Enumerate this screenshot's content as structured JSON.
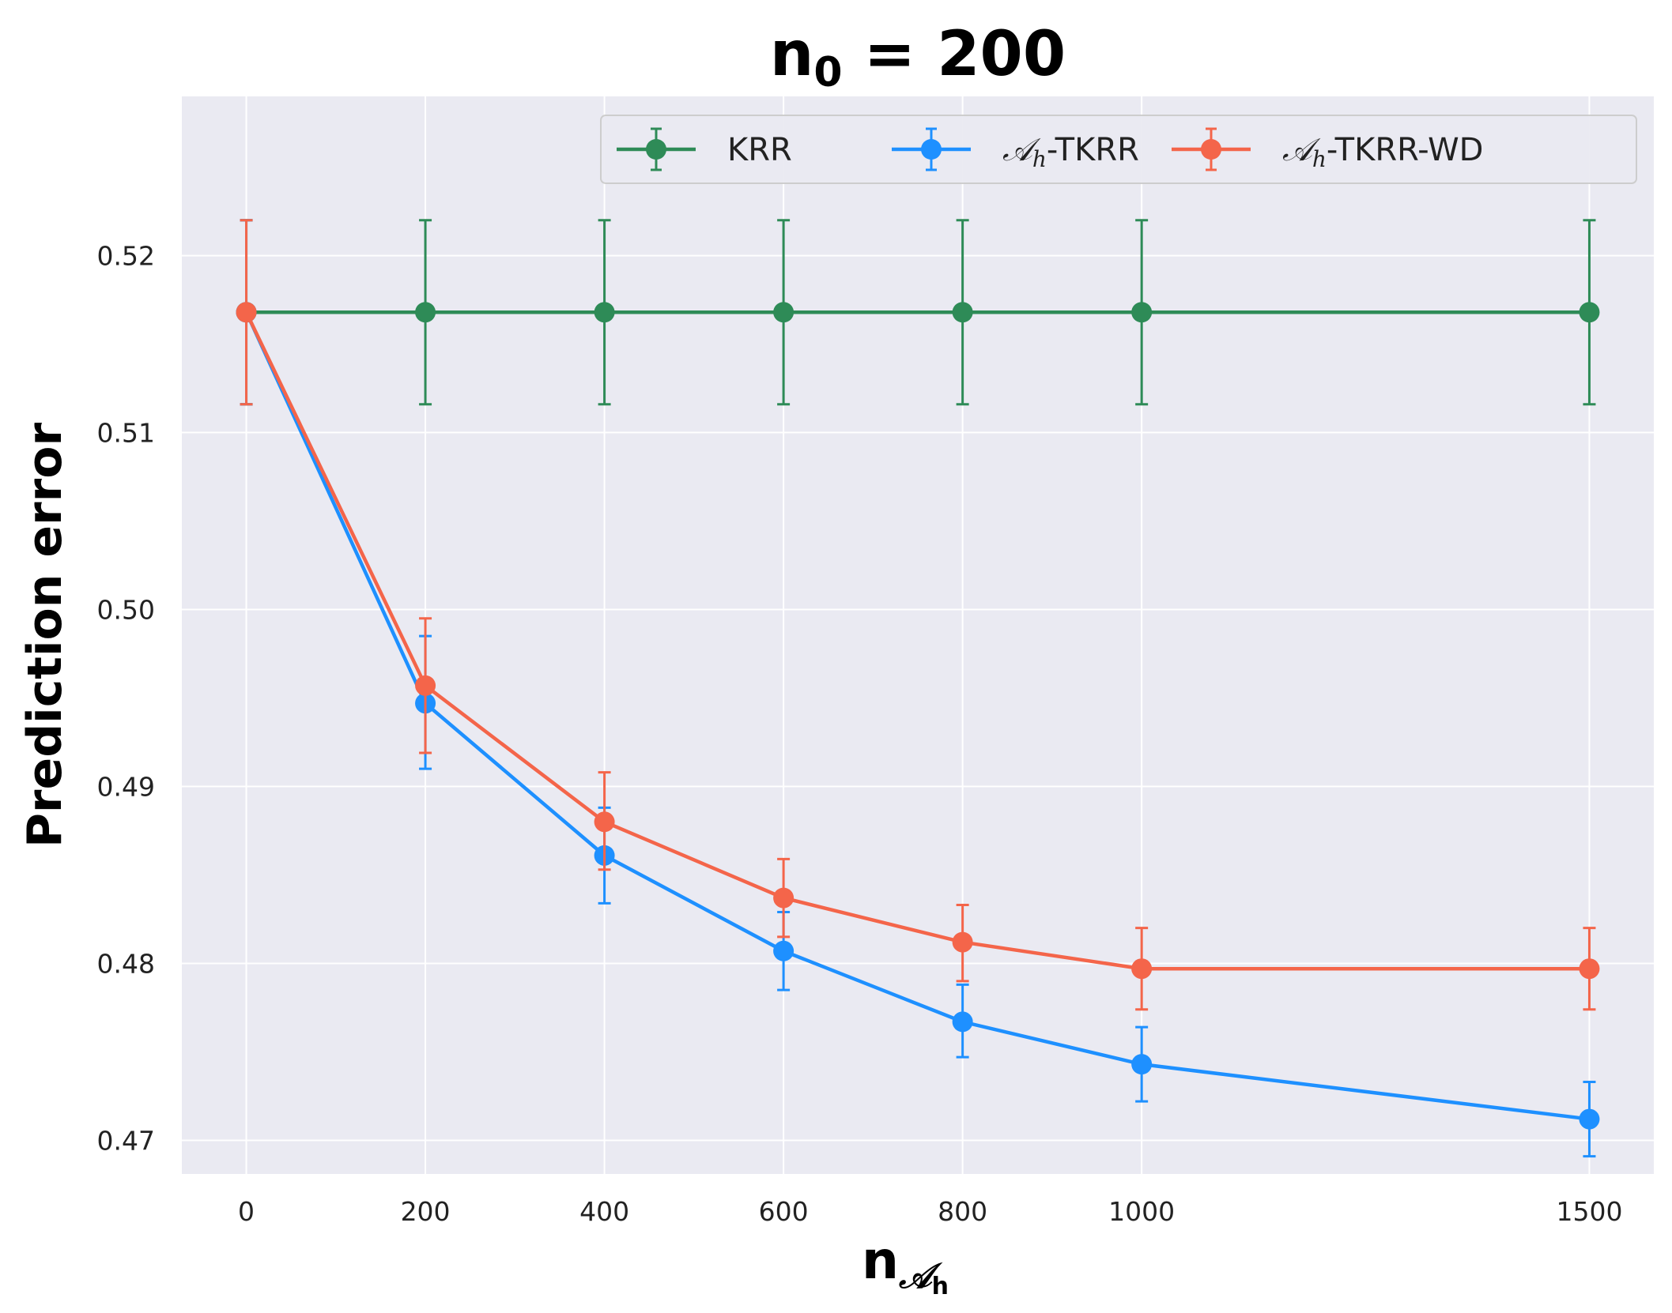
{
  "chart_data": {
    "type": "line",
    "title": {
      "main": "n",
      "sub": "0",
      "rest": " = 200"
    },
    "xlabel": {
      "main": "n",
      "sub_script": "𝒜",
      "sub_sub": "h"
    },
    "ylabel": "Prediction error",
    "x": [
      0,
      200,
      400,
      600,
      800,
      1000,
      1500
    ],
    "xticks": [
      "0",
      "200",
      "400",
      "600",
      "800",
      "1000",
      "1500"
    ],
    "xlim": [
      -72,
      1572
    ],
    "ylim": [
      0.4681,
      0.529
    ],
    "yticks": [
      0.47,
      0.48,
      0.49,
      0.5,
      0.51,
      0.52
    ],
    "ytick_labels": [
      "0.47",
      "0.48",
      "0.49",
      "0.50",
      "0.51",
      "0.52"
    ],
    "grid": true,
    "legend_position": "top-right",
    "series": [
      {
        "name": "KRR",
        "legend": {
          "prefix": "",
          "italic": "",
          "sub": "",
          "suffix": "KRR"
        },
        "color": "#2e8b57",
        "values": [
          0.5168,
          0.5168,
          0.5168,
          0.5168,
          0.5168,
          0.5168,
          0.5168
        ],
        "err_low": [
          0.5116,
          0.5116,
          0.5116,
          0.5116,
          0.5116,
          0.5116,
          0.5116
        ],
        "err_high": [
          0.522,
          0.522,
          0.522,
          0.522,
          0.522,
          0.522,
          0.522
        ]
      },
      {
        "name": "𝒜h-TKRR",
        "legend": {
          "prefix": "",
          "italic": "𝒜",
          "sub": "h",
          "suffix": "-TKRR"
        },
        "color": "#1e90ff",
        "values": [
          0.5168,
          0.4947,
          0.4861,
          0.4807,
          0.4767,
          0.4743,
          0.4712
        ],
        "err_low": [
          0.5116,
          0.491,
          0.4834,
          0.4785,
          0.4747,
          0.4722,
          0.4691
        ],
        "err_high": [
          0.522,
          0.4985,
          0.4888,
          0.4829,
          0.4788,
          0.4764,
          0.4733
        ]
      },
      {
        "name": "𝒜h-TKRR-WD",
        "legend": {
          "prefix": "",
          "italic": "𝒜",
          "sub": "h",
          "suffix": "-TKRR-WD"
        },
        "color": "#f4654a",
        "values": [
          0.5168,
          0.4957,
          0.488,
          0.4837,
          0.4812,
          0.4797,
          0.4797
        ],
        "err_low": [
          0.5116,
          0.4919,
          0.4853,
          0.4815,
          0.479,
          0.4774,
          0.4774
        ],
        "err_high": [
          0.522,
          0.4995,
          0.4908,
          0.4859,
          0.4833,
          0.482,
          0.482
        ]
      }
    ]
  },
  "colors": {
    "plot_background": "#eaeaf2",
    "grid": "#ffffff",
    "page_background": "#ffffff"
  }
}
